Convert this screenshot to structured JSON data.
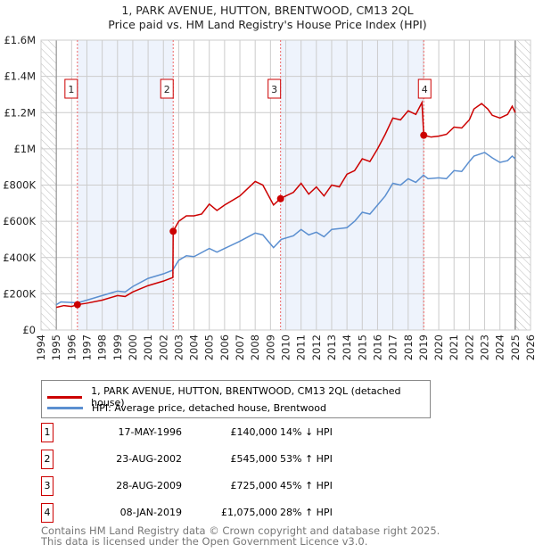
{
  "chart_data": {
    "type": "line",
    "title": "1, PARK AVENUE, HUTTON, BRENTWOOD, CM13 2QL",
    "subtitle": "Price paid vs. HM Land Registry's House Price Index (HPI)",
    "xlim": [
      1994,
      2026
    ],
    "ylim": [
      0,
      1600000
    ],
    "x_ticks": [
      "1994",
      "1995",
      "1996",
      "1997",
      "1998",
      "1999",
      "2000",
      "2001",
      "2002",
      "2003",
      "2004",
      "2005",
      "2006",
      "2007",
      "2008",
      "2009",
      "2010",
      "2011",
      "2012",
      "2013",
      "2014",
      "2015",
      "2016",
      "2017",
      "2018",
      "2019",
      "2020",
      "2021",
      "2022",
      "2023",
      "2024",
      "2025",
      "2026"
    ],
    "y_ticks": [
      {
        "v": 0,
        "label": "£0"
      },
      {
        "v": 200000,
        "label": "£200K"
      },
      {
        "v": 400000,
        "label": "£400K"
      },
      {
        "v": 600000,
        "label": "£600K"
      },
      {
        "v": 800000,
        "label": "£800K"
      },
      {
        "v": 1000000,
        "label": "£1M"
      },
      {
        "v": 1200000,
        "label": "£1.2M"
      },
      {
        "v": 1400000,
        "label": "£1.4M"
      },
      {
        "v": 1600000,
        "label": "£1.6M"
      }
    ],
    "grid": true,
    "colors": {
      "property": "#cc0000",
      "hpi": "#5b8fd0",
      "shade": "#eef3fc"
    },
    "series": [
      {
        "name": "1, PARK AVENUE, HUTTON, BRENTWOOD, CM13 2QL (detached house)",
        "color": "#cc0000",
        "x": [
          1995,
          1995.5,
          1996,
          1996.38,
          1997,
          1998,
          1999,
          1999.5,
          2000,
          2001,
          2002,
          2002.62,
          2002.64,
          2003,
          2003.5,
          2004,
          2004.5,
          2005,
          2005.5,
          2006,
          2007,
          2008,
          2008.5,
          2009.2,
          2009.65,
          2010,
          2010.5,
          2011,
          2011.5,
          2012,
          2012.5,
          2013,
          2013.5,
          2014,
          2014.5,
          2015,
          2015.5,
          2016,
          2016.5,
          2017,
          2017.5,
          2018,
          2018.5,
          2018.9,
          2019.02,
          2019.5,
          2020,
          2020.5,
          2021,
          2021.5,
          2022,
          2022.3,
          2022.8,
          2023.2,
          2023.5,
          2024,
          2024.5,
          2024.8,
          2025
        ],
        "y": [
          125000,
          135000,
          130000,
          140000,
          148000,
          165000,
          190000,
          185000,
          210000,
          245000,
          270000,
          290000,
          545000,
          600000,
          630000,
          630000,
          640000,
          695000,
          660000,
          690000,
          740000,
          820000,
          800000,
          690000,
          725000,
          740000,
          760000,
          810000,
          750000,
          790000,
          740000,
          800000,
          790000,
          860000,
          880000,
          945000,
          930000,
          1000000,
          1080000,
          1170000,
          1160000,
          1210000,
          1190000,
          1255000,
          1075000,
          1065000,
          1070000,
          1080000,
          1120000,
          1115000,
          1160000,
          1220000,
          1250000,
          1220000,
          1185000,
          1170000,
          1190000,
          1235000,
          1200000
        ]
      },
      {
        "name": "HPI: Average price, detached house, Brentwood",
        "color": "#5b8fd0",
        "x": [
          1995,
          1995.3,
          1996.4,
          1997,
          1998,
          1999,
          1999.5,
          2000,
          2001,
          2002,
          2002.6,
          2003,
          2003.5,
          2004,
          2005,
          2005.5,
          2006,
          2007,
          2008,
          2008.5,
          2009.2,
          2009.7,
          2010.5,
          2011,
          2011.5,
          2012,
          2012.5,
          2013,
          2014,
          2014.5,
          2015,
          2015.5,
          2016,
          2016.5,
          2017,
          2017.5,
          2018,
          2018.5,
          2019,
          2019.3,
          2020,
          2020.5,
          2021,
          2021.5,
          2022,
          2022.3,
          2023,
          2023.5,
          2024,
          2024.5,
          2024.8,
          2025
        ],
        "y": [
          140000,
          155000,
          150000,
          165000,
          190000,
          215000,
          210000,
          240000,
          285000,
          310000,
          330000,
          385000,
          410000,
          405000,
          450000,
          430000,
          450000,
          490000,
          535000,
          525000,
          455000,
          500000,
          520000,
          555000,
          525000,
          540000,
          515000,
          555000,
          565000,
          600000,
          650000,
          640000,
          690000,
          740000,
          810000,
          800000,
          835000,
          815000,
          855000,
          835000,
          840000,
          835000,
          880000,
          875000,
          930000,
          960000,
          980000,
          950000,
          925000,
          935000,
          960000,
          945000
        ]
      }
    ],
    "sales": [
      {
        "id": "1",
        "x": 1996.38,
        "y": 140000,
        "date": "17-MAY-1996",
        "price": "£140,000",
        "hpi": "14% ↓ HPI"
      },
      {
        "id": "2",
        "x": 2002.64,
        "y": 545000,
        "date": "23-AUG-2002",
        "price": "£545,000",
        "hpi": "53% ↑ HPI"
      },
      {
        "id": "3",
        "x": 2009.66,
        "y": 725000,
        "date": "28-AUG-2009",
        "price": "£725,000",
        "hpi": "45% ↑ HPI"
      },
      {
        "id": "4",
        "x": 2019.02,
        "y": 1075000,
        "date": "08-JAN-2019",
        "price": "£1,075,000",
        "hpi": "28% ↑ HPI"
      }
    ],
    "shaded_ranges": [
      [
        1996.38,
        2002.64
      ],
      [
        2009.66,
        2019.02
      ]
    ],
    "hatched_ranges": [
      [
        1994,
        1995
      ],
      [
        2025,
        2026
      ]
    ]
  },
  "footer": {
    "line1": "Contains HM Land Registry data © Crown copyright and database right 2025.",
    "line2": "This data is licensed under the Open Government Licence v3.0."
  }
}
